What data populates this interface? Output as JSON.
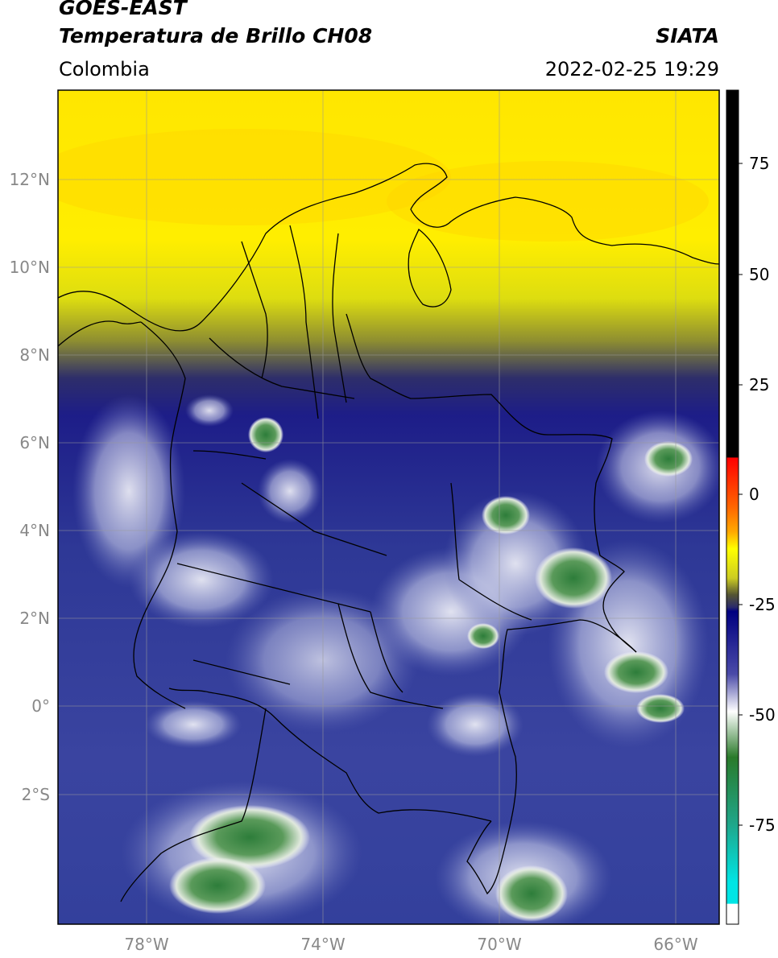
{
  "header": {
    "title_line1": "GOES-EAST",
    "title_line2": "Temperatura de Brillo CH08",
    "region": "Colombia",
    "agency": "SIATA",
    "datetime": "2022-02-25 19:29"
  },
  "map": {
    "lat_ticks": [
      "12°N",
      "10°N",
      "8°N",
      "6°N",
      "4°N",
      "2°N",
      "0°",
      "2°S"
    ],
    "lon_ticks": [
      "78°W",
      "74°W",
      "70°W",
      "66°W"
    ],
    "lat_range": [
      -4.5,
      14.5
    ],
    "lon_range": [
      -80.0,
      -65.0
    ],
    "gridlines": true
  },
  "colorbar": {
    "ticks": [
      "75",
      "50",
      "25",
      "0",
      "-25",
      "-50",
      "-75"
    ],
    "tick_values": [
      75,
      50,
      25,
      0,
      -25,
      -50,
      -75
    ],
    "range": [
      -96,
      89
    ],
    "colors": {
      "black": "#000000",
      "red": "#ff0000",
      "orange": "#ff9900",
      "yellow": "#ffff00",
      "olive": "#55552a",
      "navy": "#000080",
      "white": "#ffffff",
      "green": "#2a7a2a",
      "teal": "#20b2aa",
      "cyan": "#00e5e5"
    }
  }
}
